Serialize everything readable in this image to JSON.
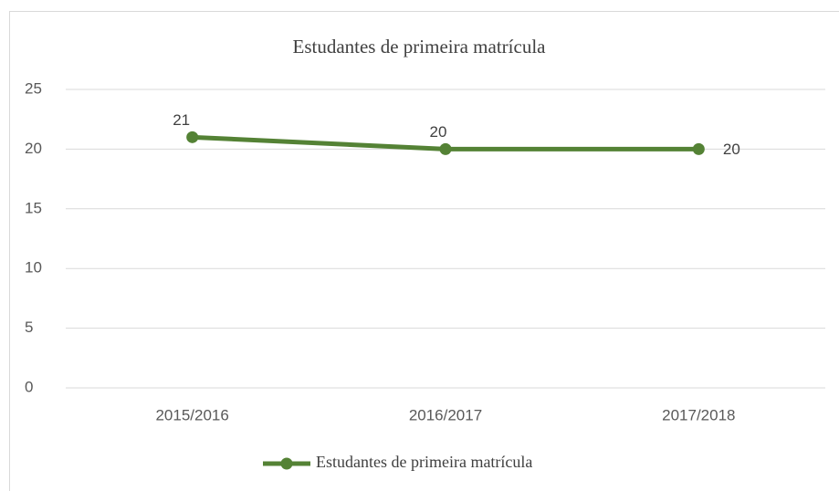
{
  "chart_data": {
    "type": "line",
    "title": "Estudantes de primeira matrícula",
    "categories": [
      "2015/2016",
      "2016/2017",
      "2017/2018"
    ],
    "series": [
      {
        "name": "Estudantes de primeira matrícula",
        "color": "#548235",
        "values": [
          21,
          20,
          20
        ]
      }
    ],
    "ylim": [
      0,
      25
    ],
    "yticks": [
      0,
      5,
      10,
      15,
      20,
      25
    ],
    "grid": true,
    "legend": "bottom"
  }
}
